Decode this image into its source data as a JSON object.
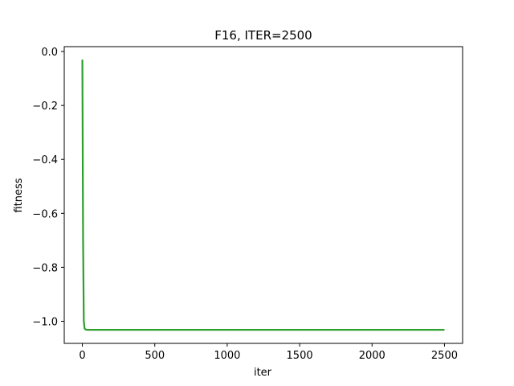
{
  "chart_data": {
    "type": "line",
    "title": "F16, ITER=2500",
    "xlabel": "iter",
    "ylabel": "fitness",
    "xlim": [
      -125,
      2625
    ],
    "ylim": [
      -1.082,
      0.018
    ],
    "xticks": [
      0,
      500,
      1000,
      1500,
      2000,
      2500
    ],
    "xtick_labels": [
      "0",
      "500",
      "1000",
      "1500",
      "2000",
      "2500"
    ],
    "yticks": [
      0.0,
      -0.2,
      -0.4,
      -0.6,
      -0.8,
      -1.0
    ],
    "ytick_labels": [
      "0.0",
      "−0.2",
      "−0.4",
      "−0.6",
      "−0.8",
      "−1.0"
    ],
    "grid": false,
    "series": [
      {
        "color": "#2ca02c",
        "x": [
          0,
          5,
          10,
          15,
          20,
          30,
          50,
          100,
          500,
          1000,
          1500,
          2000,
          2500
        ],
        "y": [
          -0.03,
          -0.7,
          -1.0,
          -1.025,
          -1.03,
          -1.0316,
          -1.0316,
          -1.0316,
          -1.0316,
          -1.0316,
          -1.0316,
          -1.0316,
          -1.0316
        ]
      }
    ]
  }
}
